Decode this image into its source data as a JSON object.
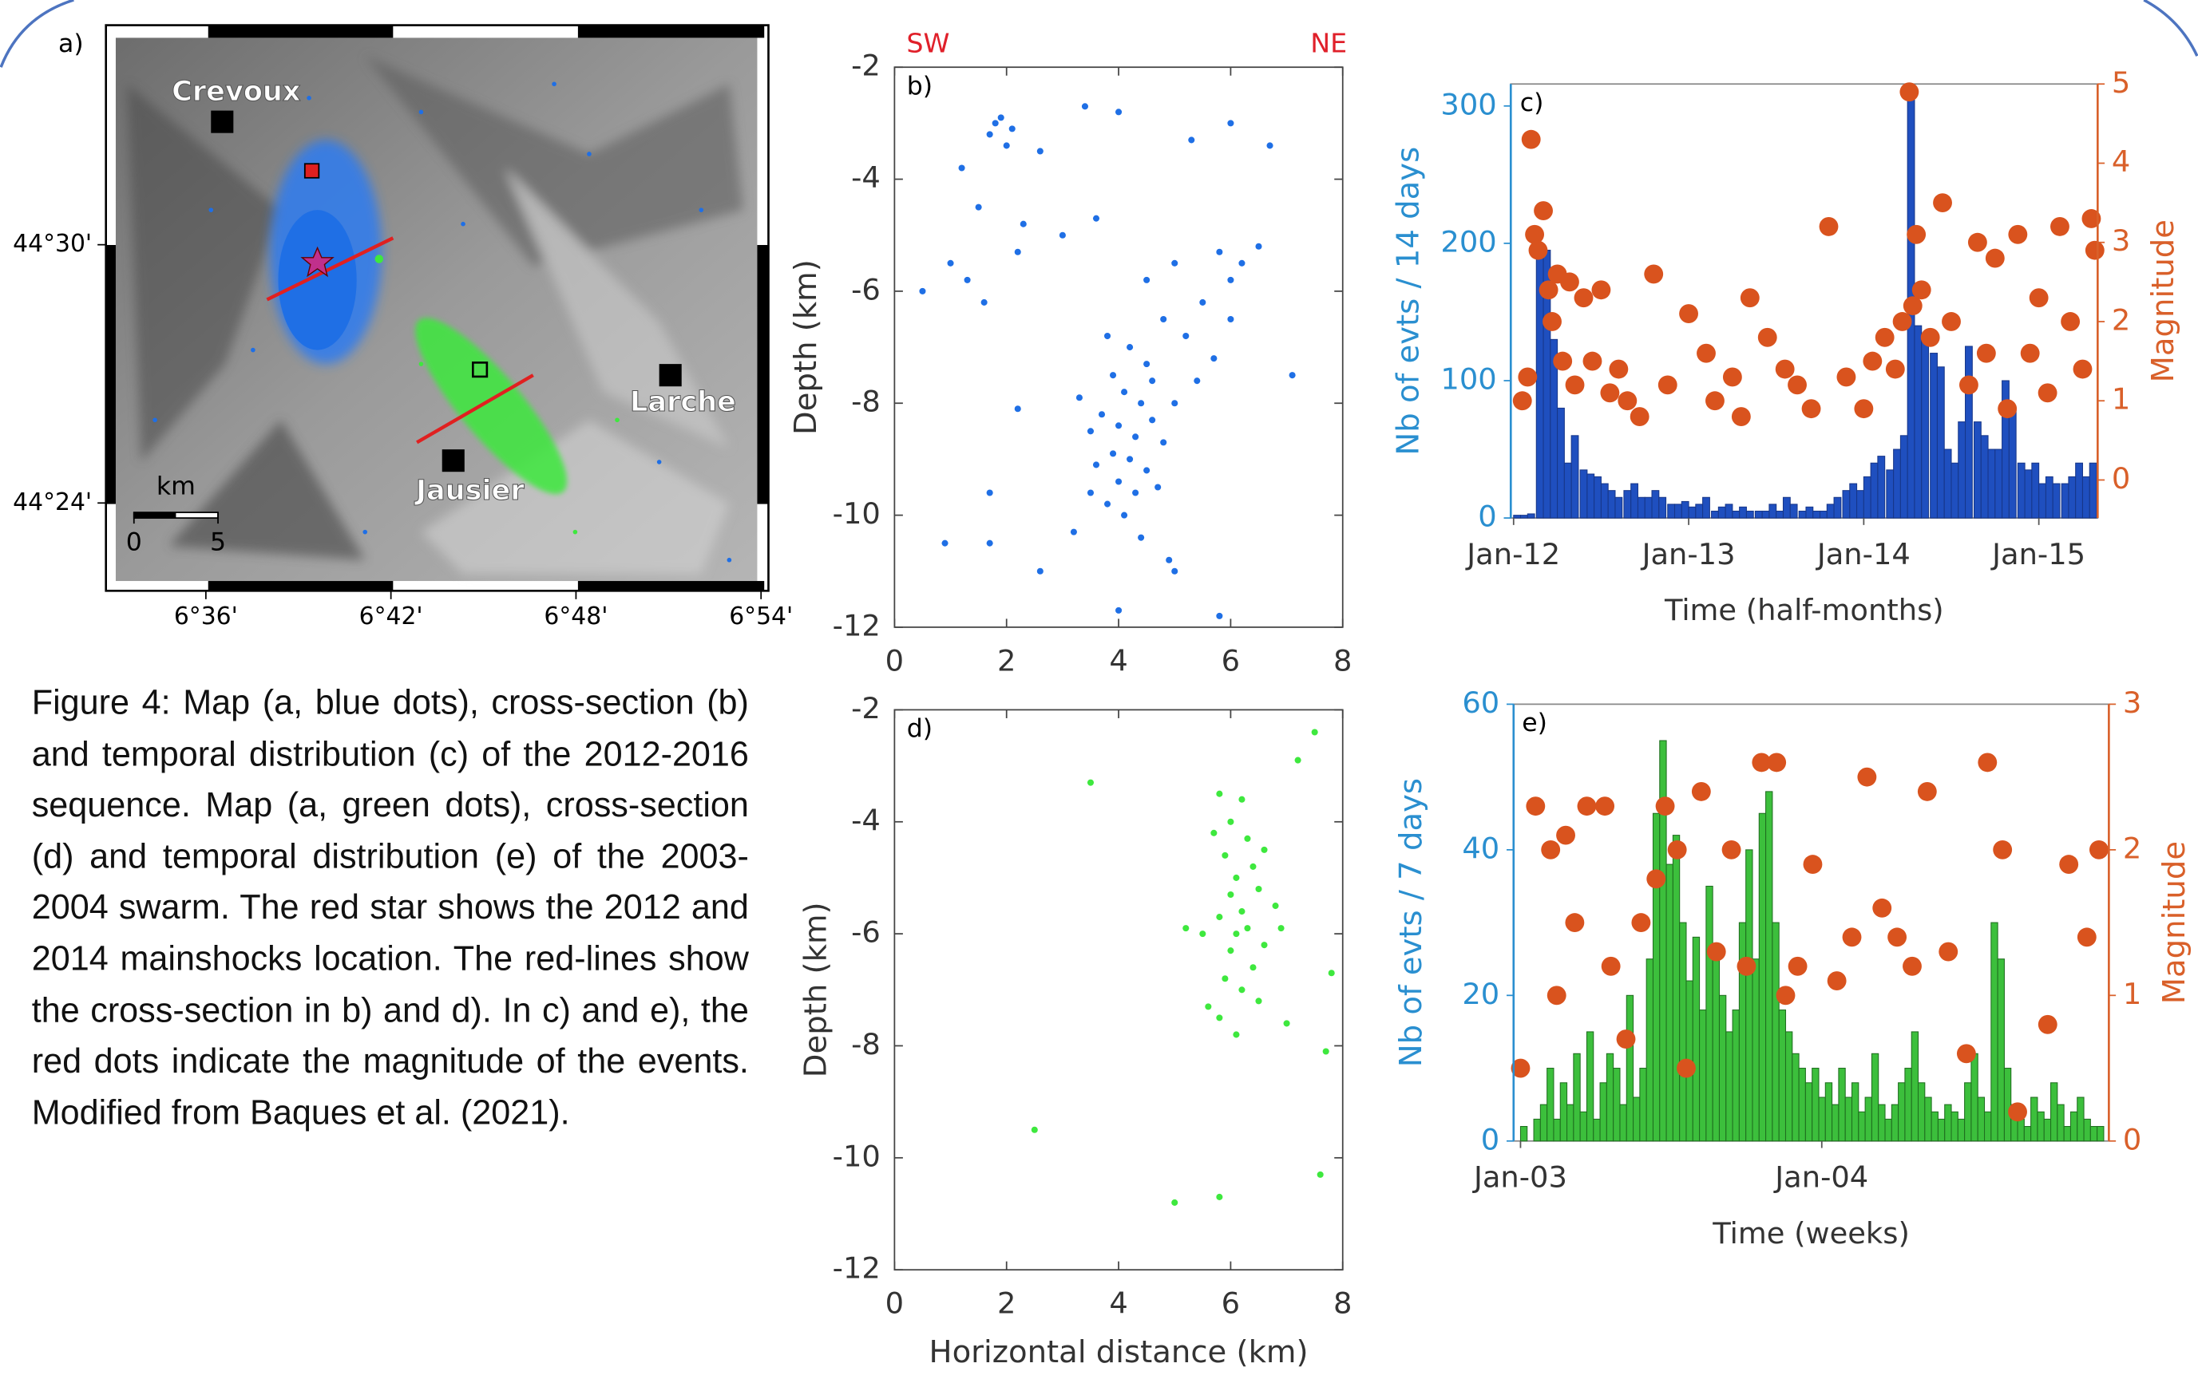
{
  "caption": "Figure 4: Map (a, blue dots), cross-section (b) and temporal distribution (c) of the 2012-2016 sequence. Map (a, green dots), cross-section (d) and temporal distribution (e) of the 2003-2004 swarm. The red star shows the 2012 and 2014 mainshocks location. The red-lines show the cross-section in b) and d). In c) and e), the red dots indicate the magnitude of the events. Modified from Baques et al. (2021).",
  "chart_data": [
    {
      "type": "map",
      "label": "a)",
      "xlim": [
        6.546,
        6.904
      ],
      "ylim": [
        44.366,
        44.585
      ],
      "xticks": [
        {
          "value": 6.6,
          "label": "6°36'"
        },
        {
          "value": 6.7,
          "label": "6°42'"
        },
        {
          "value": 6.8,
          "label": "6°48'"
        },
        {
          "value": 6.9,
          "label": "6°54'"
        }
      ],
      "yticks": [
        {
          "value": 44.5,
          "label": "44°30'"
        },
        {
          "value": 44.4,
          "label": "44°24'"
        }
      ],
      "places": [
        "Crevoux",
        "Larche",
        "Jausier"
      ],
      "scale_label": "km",
      "scale_ticks": [
        0,
        5
      ]
    },
    {
      "type": "scatter",
      "label": "b)",
      "left_annotation": "SW",
      "right_annotation": "NE",
      "y_label": "Depth (km)",
      "xlim": [
        0,
        8
      ],
      "ylim": [
        -12,
        -2
      ],
      "xticks": [
        0,
        2,
        4,
        6,
        8
      ],
      "yticks": [
        -12,
        -10,
        -8,
        -6,
        -4,
        -2
      ],
      "color": "#1f6fe5",
      "x": [
        1.8,
        1.9,
        2.1,
        1.7,
        2.0,
        3.4,
        4.0,
        2.6,
        5.3,
        6.0,
        6.7,
        1.2,
        1.5,
        2.3,
        1.0,
        1.3,
        0.5,
        1.6,
        2.2,
        3.0,
        3.6,
        4.5,
        5.0,
        5.8,
        6.2,
        6.5,
        5.5,
        6.0,
        5.2,
        4.8,
        3.8,
        4.2,
        4.5,
        3.9,
        4.1,
        4.4,
        3.7,
        4.0,
        4.3,
        4.6,
        3.5,
        4.8,
        3.9,
        4.2,
        4.5,
        3.6,
        4.0,
        4.3,
        3.8,
        4.1,
        3.5,
        4.7,
        5.0,
        5.4,
        3.3,
        2.2,
        7.1,
        1.7,
        0.9,
        1.7,
        4.0,
        5.0,
        4.9,
        5.8,
        6.0,
        5.7,
        4.6,
        3.2,
        4.4,
        2.6
      ],
      "values": [
        -3,
        -2.9,
        -3.1,
        -3.2,
        -3.4,
        -2.7,
        -2.8,
        -3.5,
        -3.3,
        -3.0,
        -3.4,
        -3.8,
        -4.5,
        -4.8,
        -5.5,
        -5.8,
        -6.0,
        -6.2,
        -5.3,
        -5.0,
        -4.7,
        -5.8,
        -5.5,
        -5.3,
        -5.5,
        -5.2,
        -6.2,
        -6.5,
        -6.8,
        -6.5,
        -6.8,
        -7.0,
        -7.3,
        -7.5,
        -7.8,
        -8.0,
        -8.2,
        -8.4,
        -8.6,
        -8.3,
        -8.5,
        -8.7,
        -8.9,
        -9.0,
        -9.2,
        -9.1,
        -9.4,
        -9.6,
        -9.8,
        -10.0,
        -9.6,
        -9.5,
        -8.0,
        -7.6,
        -7.9,
        -8.1,
        -7.5,
        -9.6,
        -10.5,
        -10.5,
        -11.7,
        -11.0,
        -10.8,
        -11.8,
        -5.8,
        -7.2,
        -7.6,
        -10.3,
        -10.4,
        -11.0
      ]
    },
    {
      "type": "bar",
      "label": "c)",
      "x_label": "Time (half-months)",
      "y_label": "Nb of evts / 14 days",
      "y2_label": "Magnitude",
      "xlim": [
        2011.984,
        2015.336
      ],
      "ylim": [
        0,
        316
      ],
      "y2lim": [
        -0.48,
        5
      ],
      "xticks": [
        {
          "value": 2012,
          "label": "Jan-12"
        },
        {
          "value": 2013,
          "label": "Jan-13"
        },
        {
          "value": 2014,
          "label": "Jan-14"
        },
        {
          "value": 2015,
          "label": "Jan-15"
        }
      ],
      "yticks": [
        0,
        100,
        200,
        300
      ],
      "y2ticks": [
        0,
        1,
        2,
        3,
        4,
        5
      ],
      "y_color": "#2a8fd0",
      "y2_color": "#d9602a",
      "series": [
        {
          "kind": "bar",
          "color": "#1f4fbf",
          "x": [
            2012.0,
            2012.04,
            2012.08,
            2012.13,
            2012.17,
            2012.21,
            2012.25,
            2012.29,
            2012.33,
            2012.38,
            2012.42,
            2012.46,
            2012.5,
            2012.54,
            2012.58,
            2012.63,
            2012.67,
            2012.71,
            2012.75,
            2012.79,
            2012.83,
            2012.88,
            2012.92,
            2012.96,
            2013.0,
            2013.04,
            2013.08,
            2013.13,
            2013.17,
            2013.21,
            2013.25,
            2013.29,
            2013.33,
            2013.38,
            2013.42,
            2013.46,
            2013.5,
            2013.54,
            2013.58,
            2013.63,
            2013.67,
            2013.71,
            2013.75,
            2013.79,
            2013.83,
            2013.88,
            2013.92,
            2013.96,
            2014.0,
            2014.04,
            2014.08,
            2014.13,
            2014.17,
            2014.21,
            2014.25,
            2014.29,
            2014.33,
            2014.38,
            2014.42,
            2014.46,
            2014.5,
            2014.54,
            2014.58,
            2014.63,
            2014.67,
            2014.71,
            2014.75,
            2014.79,
            2014.83,
            2014.88,
            2014.92,
            2014.96,
            2015.0,
            2015.04,
            2015.08,
            2015.13,
            2015.17,
            2015.21,
            2015.25,
            2015.29
          ],
          "values": [
            2,
            2,
            3,
            190,
            195,
            130,
            80,
            40,
            60,
            35,
            32,
            30,
            25,
            20,
            15,
            20,
            25,
            15,
            15,
            20,
            15,
            10,
            10,
            12,
            8,
            10,
            15,
            5,
            8,
            10,
            5,
            8,
            5,
            5,
            5,
            10,
            5,
            15,
            10,
            5,
            8,
            5,
            5,
            10,
            15,
            20,
            25,
            20,
            30,
            40,
            45,
            35,
            50,
            60,
            310,
            140,
            130,
            120,
            110,
            50,
            40,
            70,
            125,
            70,
            60,
            50,
            50,
            100,
            80,
            40,
            35,
            40,
            25,
            30,
            25,
            25,
            30,
            40,
            30,
            40
          ]
        },
        {
          "kind": "scatter",
          "axis": "y2",
          "color": "#d9531e",
          "x": [
            2012.05,
            2012.08,
            2012.1,
            2012.12,
            2012.14,
            2012.17,
            2012.2,
            2012.22,
            2012.25,
            2012.28,
            2012.32,
            2012.35,
            2012.4,
            2012.45,
            2012.5,
            2012.55,
            2012.6,
            2012.65,
            2012.72,
            2012.8,
            2012.88,
            2013.0,
            2013.1,
            2013.15,
            2013.25,
            2013.3,
            2013.35,
            2013.45,
            2013.55,
            2013.62,
            2013.7,
            2013.8,
            2013.9,
            2014.0,
            2014.05,
            2014.12,
            2014.18,
            2014.22,
            2014.26,
            2014.28,
            2014.3,
            2014.33,
            2014.38,
            2014.45,
            2014.5,
            2014.6,
            2014.65,
            2014.7,
            2014.75,
            2014.82,
            2014.88,
            2014.95,
            2015.0,
            2015.05,
            2015.12,
            2015.18,
            2015.25,
            2015.3,
            2015.32
          ],
          "values": [
            1.0,
            1.3,
            4.3,
            3.1,
            2.9,
            3.4,
            2.4,
            2.0,
            2.6,
            1.5,
            2.5,
            1.2,
            2.3,
            1.5,
            2.4,
            1.1,
            1.4,
            1.0,
            0.8,
            2.6,
            1.2,
            2.1,
            1.6,
            1.0,
            1.3,
            0.8,
            2.3,
            1.8,
            1.4,
            1.2,
            0.9,
            3.2,
            1.3,
            0.9,
            1.5,
            1.8,
            1.4,
            2.0,
            4.9,
            2.2,
            3.1,
            2.4,
            1.8,
            3.5,
            2.0,
            1.2,
            3.0,
            1.6,
            2.8,
            0.9,
            3.1,
            1.6,
            2.3,
            1.1,
            3.2,
            2.0,
            1.4,
            3.3,
            2.9
          ]
        }
      ]
    },
    {
      "type": "scatter",
      "label": "d)",
      "x_label": "Horizontal distance (km)",
      "y_label": "Depth (km)",
      "xlim": [
        0,
        8
      ],
      "ylim": [
        -12,
        -2
      ],
      "xticks": [
        0,
        2,
        4,
        6,
        8
      ],
      "yticks": [
        -12,
        -10,
        -8,
        -6,
        -4,
        -2
      ],
      "color": "#3ee83e",
      "x": [
        3.5,
        7.5,
        7.2,
        5.8,
        6.2,
        6.0,
        6.3,
        5.9,
        6.4,
        6.1,
        6.0,
        6.5,
        6.2,
        5.8,
        6.3,
        6.1,
        5.5,
        5.2,
        6.6,
        6.0,
        6.4,
        5.9,
        6.2,
        6.5,
        5.8,
        6.1,
        7.0,
        5.6,
        6.8,
        6.6,
        7.8,
        7.7,
        7.6,
        2.5,
        5.0,
        5.8,
        6.9,
        5.7
      ],
      "values": [
        -3.3,
        -2.4,
        -2.9,
        -3.5,
        -3.6,
        -4.0,
        -4.3,
        -4.6,
        -4.8,
        -5.0,
        -5.3,
        -5.2,
        -5.6,
        -5.7,
        -5.9,
        -6.0,
        -6.0,
        -5.9,
        -6.2,
        -6.3,
        -6.6,
        -6.8,
        -7.0,
        -7.2,
        -7.5,
        -7.8,
        -7.6,
        -7.3,
        -5.5,
        -4.5,
        -6.7,
        -8.1,
        -10.3,
        -9.5,
        -10.8,
        -10.7,
        -5.9,
        -4.2
      ]
    },
    {
      "type": "bar",
      "label": "e)",
      "x_label": "Time (weeks)",
      "y_label": "Nb of evts / 7 days",
      "y2_label": "Magnitude",
      "xlim": [
        2002.977,
        2004.953
      ],
      "ylim": [
        0,
        60
      ],
      "y2lim": [
        0,
        3
      ],
      "xticks": [
        {
          "value": 2003,
          "label": "Jan-03"
        },
        {
          "value": 2004,
          "label": "Jan-04"
        }
      ],
      "yticks": [
        0,
        20,
        40,
        60
      ],
      "y2ticks": [
        0,
        1,
        2,
        3
      ],
      "y_color": "#2a8fd0",
      "y2_color": "#d9602a",
      "series": [
        {
          "kind": "bar",
          "color": "#3cbf3c",
          "x": [
            2003.0,
            2003.022,
            2003.044,
            2003.066,
            2003.088,
            2003.11,
            2003.132,
            2003.154,
            2003.176,
            2003.198,
            2003.22,
            2003.242,
            2003.264,
            2003.286,
            2003.308,
            2003.33,
            2003.352,
            2003.374,
            2003.396,
            2003.418,
            2003.44,
            2003.462,
            2003.484,
            2003.506,
            2003.528,
            2003.55,
            2003.572,
            2003.594,
            2003.616,
            2003.638,
            2003.66,
            2003.682,
            2003.704,
            2003.726,
            2003.748,
            2003.77,
            2003.792,
            2003.814,
            2003.836,
            2003.858,
            2003.88,
            2003.902,
            2003.924,
            2003.946,
            2003.968,
            2003.99,
            2004.012,
            2004.034,
            2004.056,
            2004.078,
            2004.1,
            2004.122,
            2004.144,
            2004.166,
            2004.188,
            2004.21,
            2004.232,
            2004.254,
            2004.276,
            2004.298,
            2004.32,
            2004.342,
            2004.364,
            2004.386,
            2004.408,
            2004.43,
            2004.452,
            2004.474,
            2004.496,
            2004.518,
            2004.54,
            2004.562,
            2004.584,
            2004.606,
            2004.628,
            2004.65,
            2004.672,
            2004.694,
            2004.716,
            2004.738,
            2004.76,
            2004.782,
            2004.804,
            2004.826,
            2004.848,
            2004.87,
            2004.892,
            2004.914
          ],
          "values": [
            2,
            0,
            3,
            5,
            10,
            3,
            8,
            5,
            12,
            4,
            15,
            3,
            8,
            12,
            10,
            5,
            20,
            6,
            10,
            25,
            45,
            55,
            38,
            42,
            30,
            22,
            28,
            18,
            35,
            25,
            20,
            15,
            18,
            30,
            40,
            25,
            45,
            48,
            30,
            18,
            15,
            12,
            10,
            8,
            10,
            6,
            8,
            5,
            10,
            6,
            8,
            4,
            6,
            12,
            5,
            3,
            5,
            8,
            10,
            15,
            8,
            6,
            4,
            3,
            5,
            4,
            3,
            8,
            12,
            6,
            4,
            30,
            25,
            10,
            5,
            3,
            2,
            6,
            4,
            3,
            8,
            5,
            2,
            4,
            6,
            3,
            2,
            2
          ]
        },
        {
          "kind": "scatter",
          "axis": "y2",
          "color": "#d9531e",
          "x": [
            2003.0,
            2003.05,
            2003.1,
            2003.12,
            2003.15,
            2003.18,
            2003.22,
            2003.28,
            2003.3,
            2003.35,
            2003.4,
            2003.45,
            2003.48,
            2003.52,
            2003.55,
            2003.6,
            2003.65,
            2003.7,
            2003.75,
            2003.8,
            2003.85,
            2003.88,
            2003.92,
            2003.97,
            2004.05,
            2004.1,
            2004.15,
            2004.2,
            2004.25,
            2004.3,
            2004.35,
            2004.42,
            2004.48,
            2004.55,
            2004.6,
            2004.65,
            2004.75,
            2004.82,
            2004.88,
            2004.92
          ],
          "values": [
            0.5,
            2.3,
            2.0,
            1.0,
            2.1,
            1.5,
            2.3,
            2.3,
            1.2,
            0.7,
            1.5,
            1.8,
            2.3,
            2.0,
            0.5,
            2.4,
            1.3,
            2.0,
            1.2,
            2.6,
            2.6,
            1.0,
            1.2,
            1.9,
            1.1,
            1.4,
            2.5,
            1.6,
            1.4,
            1.2,
            2.4,
            1.3,
            0.6,
            2.6,
            2.0,
            0.2,
            0.8,
            1.9,
            1.4,
            2.0
          ]
        }
      ]
    }
  ]
}
